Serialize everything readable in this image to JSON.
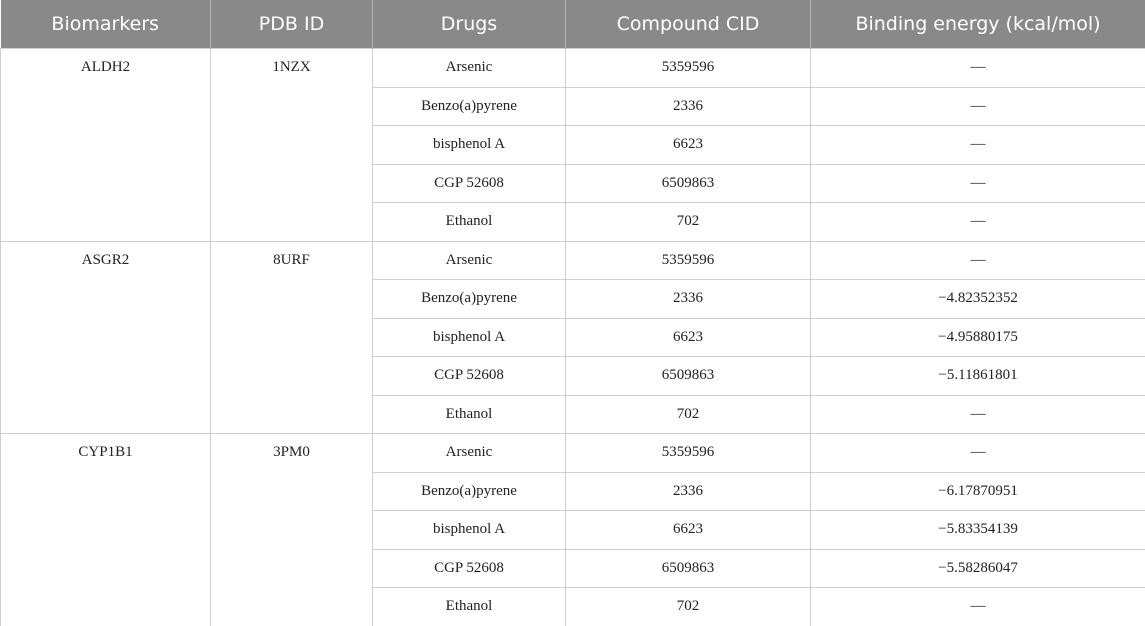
{
  "table": {
    "header": [
      "Biomarkers",
      "PDB ID",
      "Drugs",
      "Compound CID",
      "Binding energy (kcal/mol)"
    ],
    "groups": [
      {
        "biomarker": "ALDH2",
        "pdb_id": "1NZX",
        "rows": [
          [
            "Arsenic",
            "5359596",
            "—"
          ],
          [
            "Benzo(a)pyrene",
            "2336",
            "—"
          ],
          [
            "bisphenol A",
            "6623",
            "—"
          ],
          [
            "CGP 52608",
            "6509863",
            "—"
          ],
          [
            "Ethanol",
            "702",
            "—"
          ]
        ]
      },
      {
        "biomarker": "ASGR2",
        "pdb_id": "8URF",
        "rows": [
          [
            "Arsenic",
            "5359596",
            "—"
          ],
          [
            "Benzo(a)pyrene",
            "2336",
            "−4.82352352"
          ],
          [
            "bisphenol A",
            "6623",
            "−4.95880175"
          ],
          [
            "CGP 52608",
            "6509863",
            "−5.11861801"
          ],
          [
            "Ethanol",
            "702",
            "—"
          ]
        ]
      },
      {
        "biomarker": "CYP1B1",
        "pdb_id": "3PM0",
        "rows": [
          [
            "Arsenic",
            "5359596",
            "—"
          ],
          [
            "Benzo(a)pyrene",
            "2336",
            "−6.17870951"
          ],
          [
            "bisphenol A",
            "6623",
            "−5.83354139"
          ],
          [
            "CGP 52608",
            "6509863",
            "−5.58286047"
          ],
          [
            "Ethanol",
            "702",
            "—"
          ]
        ]
      }
    ]
  }
}
